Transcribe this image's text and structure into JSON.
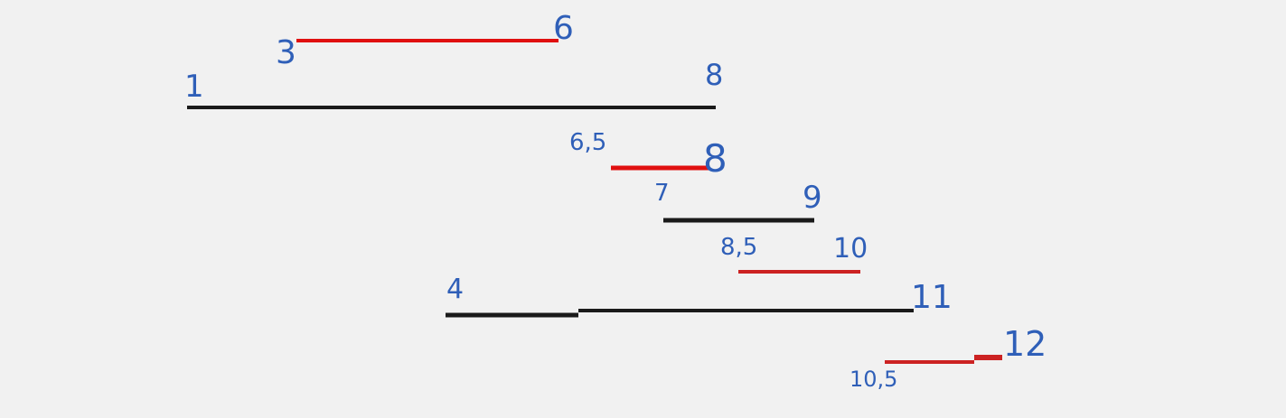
{
  "diagram": {
    "colors": {
      "background": "#f1f1f1",
      "black_segment": "#1a1a1a",
      "red_segment": "#e01010",
      "dark_red_segment": "#cc2222",
      "label": "#2f5fb8"
    },
    "segments": [
      {
        "id": "seg-3-6",
        "color": "red",
        "start": 3,
        "end": 6,
        "start_label": "3",
        "end_label": "6"
      },
      {
        "id": "seg-1-8",
        "color": "black",
        "start": 1,
        "end": 8,
        "start_label": "1",
        "end_label": "8"
      },
      {
        "id": "seg-6.5-8",
        "color": "red",
        "start": 6.5,
        "end": 8,
        "start_label": "6,5",
        "end_label": "8"
      },
      {
        "id": "seg-7-9",
        "color": "black",
        "start": 7,
        "end": 9,
        "start_label": "7",
        "end_label": "9"
      },
      {
        "id": "seg-8.5-10",
        "color": "red",
        "start": 8.5,
        "end": 10,
        "start_label": "8,5",
        "end_label": "10"
      },
      {
        "id": "seg-4-11",
        "color": "black",
        "start": 4,
        "end": 11,
        "start_label": "4",
        "end_label": "11"
      },
      {
        "id": "seg-10.5-12",
        "color": "red",
        "start": 10.5,
        "end": 12,
        "start_label": "10,5",
        "end_label": "12"
      }
    ]
  }
}
